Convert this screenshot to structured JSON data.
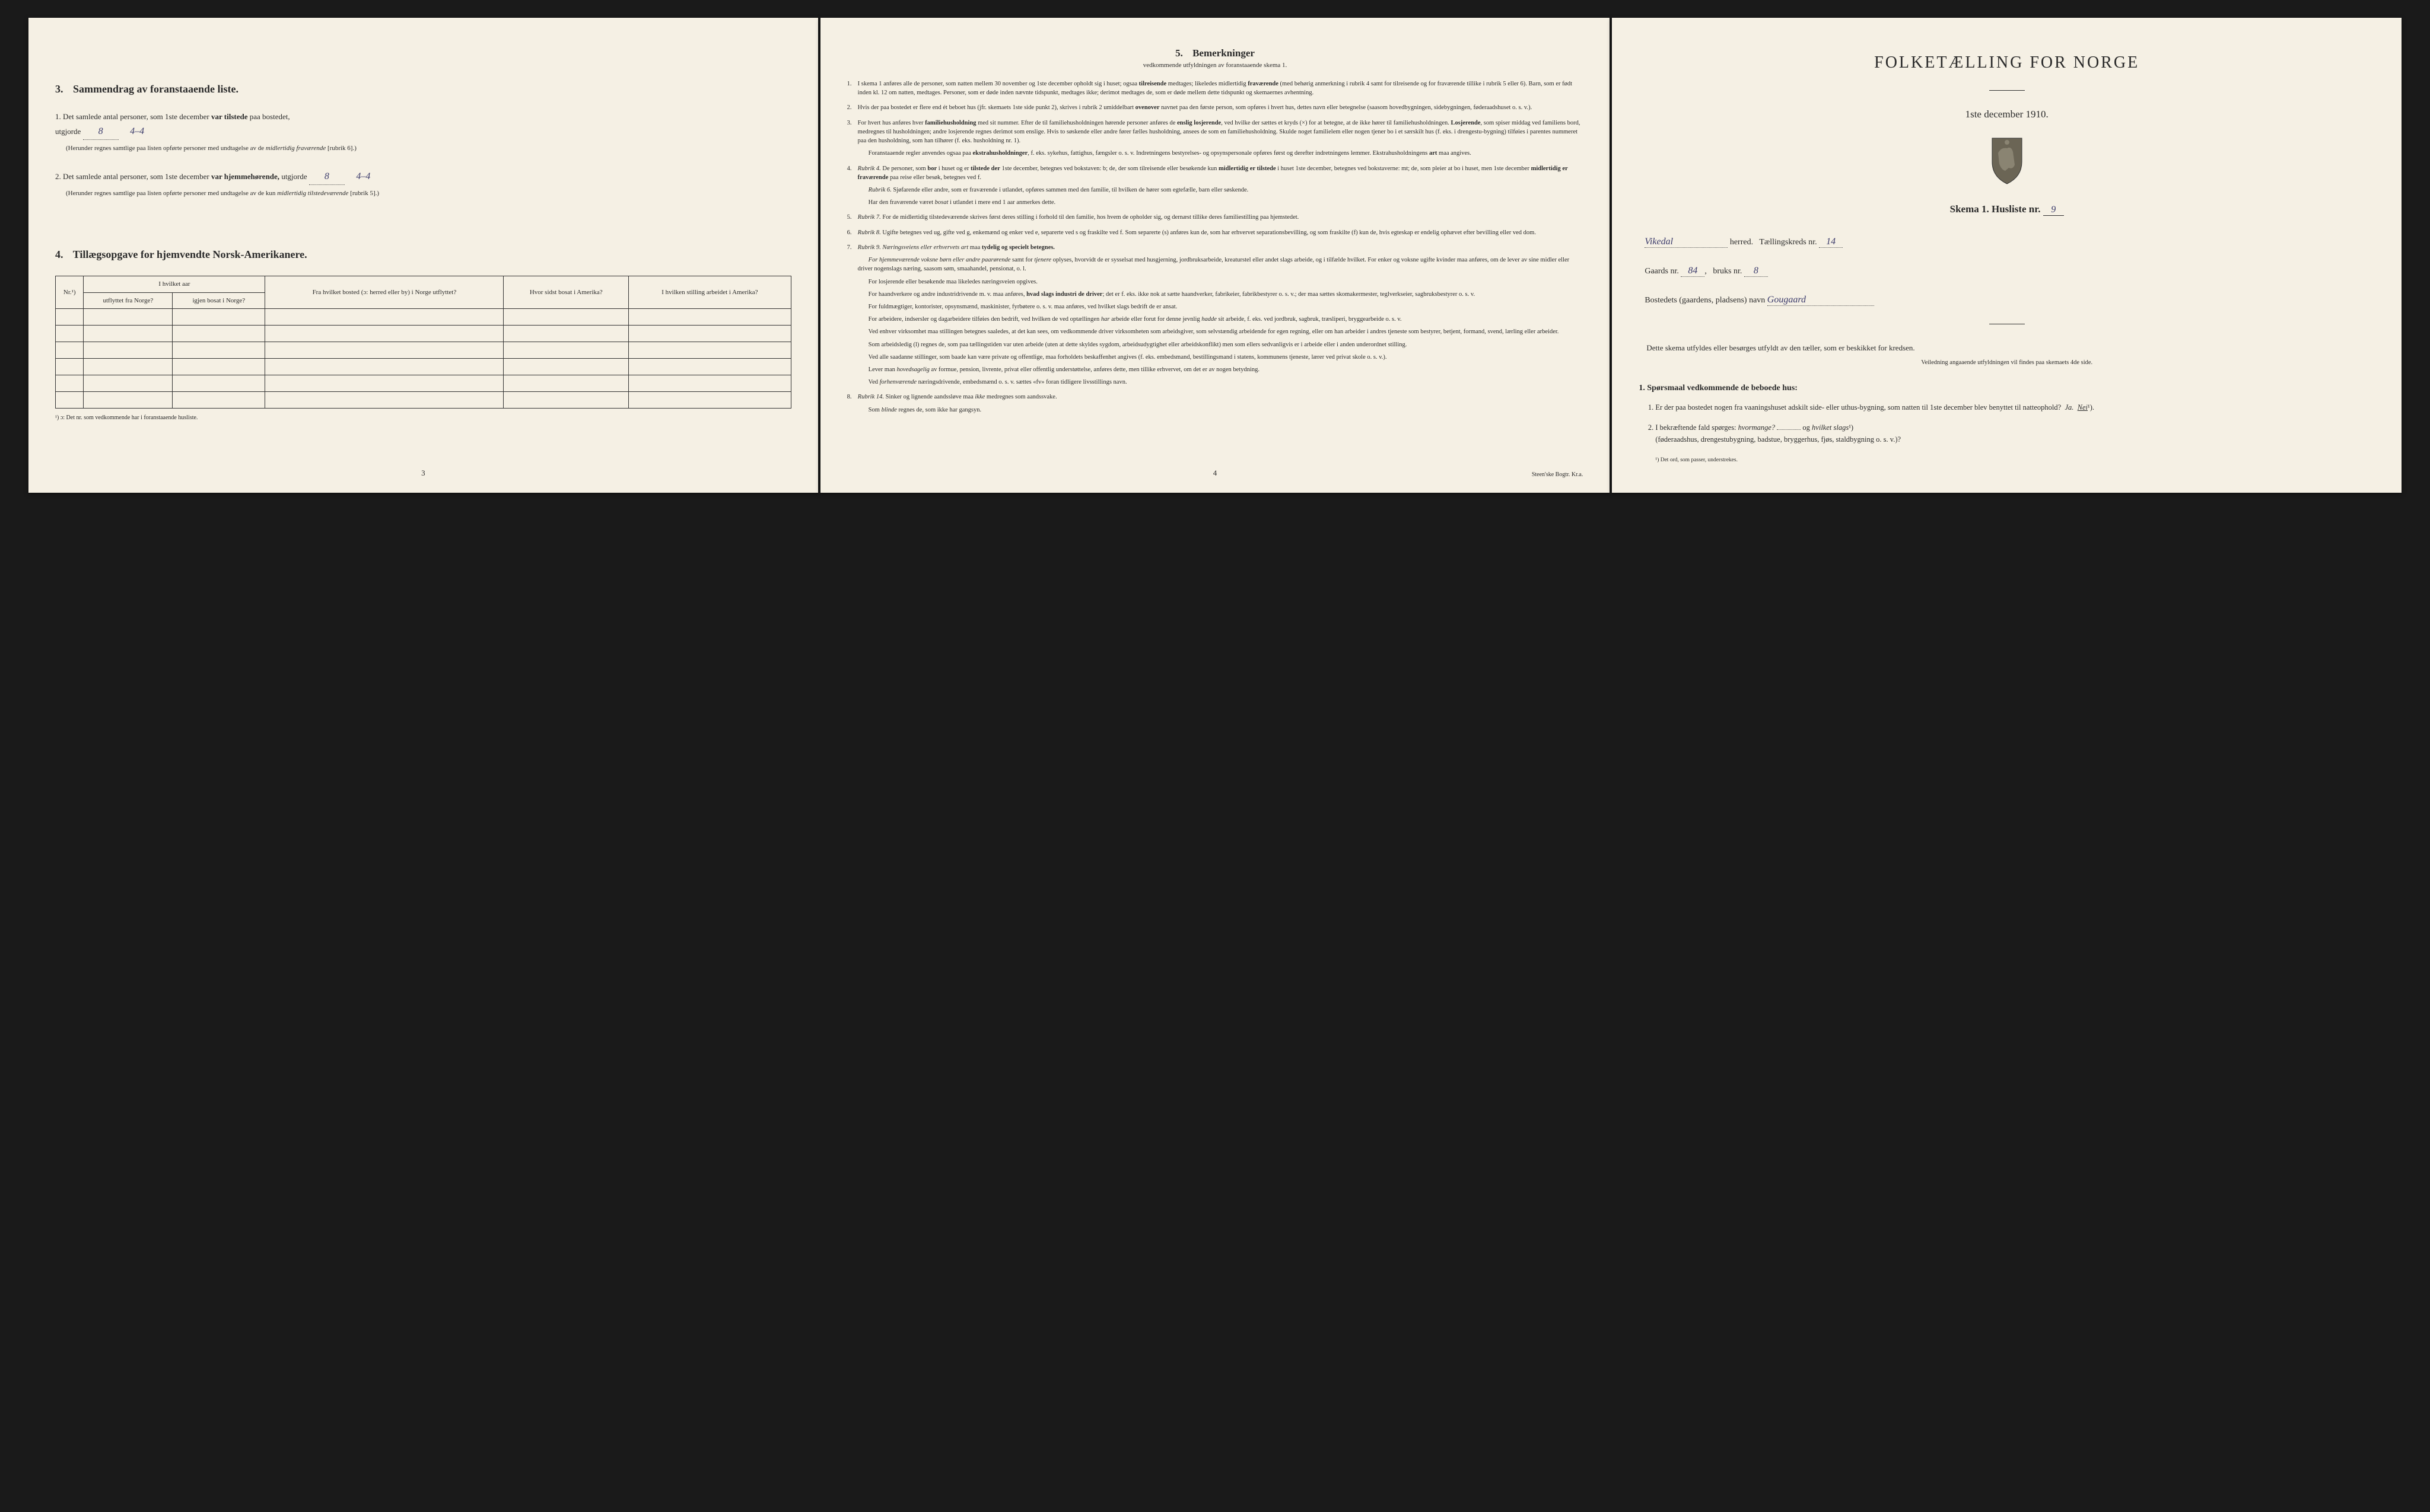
{
  "page1": {
    "section3": {
      "heading_num": "3.",
      "heading_text": "Sammendrag av foranstaaende liste.",
      "item1": {
        "num": "1.",
        "text_a": "Det samlede antal personer, som 1ste december",
        "bold_a": "var tilstede",
        "text_b": "paa bostedet,",
        "utgjorde": "utgjorde",
        "value": "8",
        "value2": "4–4",
        "paren": "(Herunder regnes samtlige paa listen opførte personer med undtagelse av de",
        "paren_italic": "midlertidig fraværende",
        "paren_end": "[rubrik 6].)"
      },
      "item2": {
        "num": "2.",
        "text_a": "Det samlede antal personer, som 1ste december",
        "bold_a": "var hjemmehørende,",
        "text_b": "utgjorde",
        "value": "8",
        "value2": "4–4",
        "paren": "(Herunder regnes samtlige paa listen opførte personer med undtagelse av de kun",
        "paren_italic": "midlertidig tilstedeværende",
        "paren_end": "[rubrik 5].)"
      }
    },
    "section4": {
      "heading_num": "4.",
      "heading_text": "Tillægsopgave for hjemvendte Norsk-Amerikanere.",
      "cols": {
        "nr": "Nr.¹)",
        "col_group": "I hvilket aar",
        "c1": "utflyttet fra Norge?",
        "c2": "igjen bosat i Norge?",
        "c3": "Fra hvilket bosted (ɔ: herred eller by) i Norge utflyttet?",
        "c4": "Hvor sidst bosat i Amerika?",
        "c5": "I hvilken stilling arbeidet i Amerika?"
      },
      "footnote": "¹) ɔ: Det nr. som vedkommende har i foranstaaende husliste."
    },
    "page_num": "3"
  },
  "page2": {
    "heading_num": "5.",
    "heading_text": "Bemerkninger",
    "subheading": "vedkommende utfyldningen av foranstaaende skema 1.",
    "items": [
      {
        "num": "1.",
        "html": "I skema 1 anføres alle de personer, som natten mellem 30 november og 1ste december opholdt sig i huset; ogsaa <b>tilreisende</b> medtages; likeledes midlertidig <b>fraværende</b> (med behørig anmerkning i rubrik 4 samt for tilreisende og for fraværende tillike i rubrik 5 eller 6). Barn, som er født inden kl. 12 om natten, medtages. Personer, som er døde inden nævnte tidspunkt, medtages ikke; derimot medtages de, som er døde mellem dette tidspunkt og skemaernes avhentning."
      },
      {
        "num": "2.",
        "html": "Hvis der paa bostedet er flere end ét beboet hus (jfr. skemaets 1ste side punkt 2), skrives i rubrik 2 umiddelbart <b>ovenover</b> navnet paa den første person, som opføres i hvert hus, dettes navn eller betegnelse (saasom hovedbygningen, sidebygningen, føderaadshuset o. s. v.)."
      },
      {
        "num": "3.",
        "html": "For hvert hus anføres hver <b>familiehusholdning</b> med sit nummer. Efter de til familiehusholdningen hørende personer anføres de <b>enslig losjerende</b>, ved hvilke der sættes et kryds (×) for at betegne, at de ikke hører til familiehusholdningen. <b>Losjerende</b>, som spiser middag ved familiens bord, medregnes til husholdningen; andre losjerende regnes derimot som enslige. Hvis to søskende eller andre fører fælles husholdning, ansees de som en familiehusholdning. Skulde noget familielem eller nogen tjener bo i et særskilt hus (f. eks. i drengestu-bygning) tilføies i parentes nummeret paa den husholdning, som han tilhører (f. eks. husholdning nr. 1).",
        "sub": "Foranstaaende regler anvendes ogsaa paa <b>ekstrahusholdninger</b>, f. eks. sykehus, fattighus, fængsler o. s. v. Indretningens bestyrelses- og opsynspersonale opføres først og derefter indretningens lemmer. Ekstrahusholdningens <b>art</b> maa angives."
      },
      {
        "num": "4.",
        "html": "<em>Rubrik 4.</em> De personer, som <b>bor</b> i huset og er <b>tilstede der</b> 1ste december, betegnes ved bokstaven: b; de, der som tilreisende eller besøkende kun <b>midlertidig er tilstede</b> i huset 1ste december, betegnes ved bokstaverne: mt; de, som pleier at bo i huset, men 1ste december <b>midlertidig er fraværende</b> paa reise eller besøk, betegnes ved f.",
        "sub": "<em>Rubrik 6.</em> Sjøfarende eller andre, som er fraværende i utlandet, opføres sammen med den familie, til hvilken de hører som egtefælle, barn eller søskende.",
        "sub2": "Har den fraværende været <em>bosat</em> i utlandet i mere end 1 aar anmerkes dette."
      },
      {
        "num": "5.",
        "html": "<em>Rubrik 7.</em> For de midlertidig tilstedeværende skrives først deres stilling i forhold til den familie, hos hvem de opholder sig, og dernæst tillike deres familiestilling paa hjemstedet."
      },
      {
        "num": "6.",
        "html": "<em>Rubrik 8.</em> Ugifte betegnes ved ug, gifte ved g, enkemænd og enker ved e, separerte ved s og fraskilte ved f. Som separerte (s) anføres kun de, som har erhvervet separationsbevilling, og som fraskilte (f) kun de, hvis egteskap er endelig ophævet efter bevilling eller ved dom."
      },
      {
        "num": "7.",
        "html": "<em>Rubrik 9. Næringsveiens eller erhvervets art</em> maa <b>tydelig og specielt betegnes.</b>",
        "sub": "<em>For hjemmeværende voksne børn eller andre paarørende</em> samt for <em>tjenere</em> oplyses, hvorvidt de er sysselsat med husgjerning, jordbruksarbeide, kreaturstel eller andet slags arbeide, og i tilfælde hvilket. For enker og voksne ugifte kvinder maa anføres, om de lever av sine midler eller driver nogenslags næring, saasom søm, smaahandel, pensionat, o. l.",
        "paras": [
          "For losjerende eller besøkende maa likeledes næringsveien opgives.",
          "For haandverkere og andre industridrivende m. v. maa anføres, <b>hvad slags industri de driver</b>; det er f. eks. ikke nok at sætte haandverker, fabrikeier, fabrikbestyrer o. s. v.; der maa sættes skomakermester, teglverkseier, sagbruksbestyrer o. s. v.",
          "For fuldmægtiger, kontorister, opsynsmænd, maskinister, fyrbøtere o. s. v. maa anføres, ved hvilket slags bedrift de er ansat.",
          "For arbeidere, indsersler og dagarbeidere tilføies den bedrift, ved hvilken de ved optællingen <em>har</em> arbeide eller forut for denne jevnlig <em>hadde</em> sit arbeide, f. eks. ved jordbruk, sagbruk, træsliperi, bryggearbeide o. s. v.",
          "Ved enhver virksomhet maa stillingen betegnes saaledes, at det kan sees, om vedkommende driver virksomheten som arbeidsgiver, som selvstændig arbeidende for egen regning, eller om han arbeider i andres tjeneste som bestyrer, betjent, formand, svend, lærling eller arbeider.",
          "Som arbeidsledig (l) regnes de, som paa tællingstiden var uten arbeide (uten at dette skyldes sygdom, arbeidsudygtighet eller arbeidskonflikt) men som ellers sedvanligvis er i arbeide eller i anden underordnet stilling.",
          "Ved alle saadanne stillinger, som baade kan være private og offentlige, maa forholdets beskaffenhet angives (f. eks. embedsmand, bestillingsmand i statens, kommunens tjeneste, lærer ved privat skole o. s. v.).",
          "Lever man <em>hovedsagelig</em> av formue, pension, livrente, privat eller offentlig understøttelse, anføres dette, men tillike erhvervet, om det er av nogen betydning.",
          "Ved <em>forhenværende</em> næringsdrivende, embedsmænd o. s. v. sættes «fv» foran tidligere livsstillings navn."
        ]
      },
      {
        "num": "8.",
        "html": "<em>Rubrik 14.</em> Sinker og lignende aandssløve maa <em>ikke</em> medregnes som aandssvake.",
        "sub": "Som <em>blinde</em> regnes de, som ikke har gangsyn."
      }
    ],
    "page_num": "4",
    "printer": "Steen'ske Bogtr. Kr.a."
  },
  "page3": {
    "title": "FOLKETÆLLING FOR NORGE",
    "date": "1ste december 1910.",
    "skema_label": "Skema 1.  Husliste nr.",
    "skema_value": "9",
    "herred_value": "Vikedal",
    "herred_label": "herred.",
    "taelling_label": "Tællingskreds nr.",
    "taelling_value": "14",
    "gaard_label": "Gaards nr.",
    "gaard_value": "84",
    "bruk_label": "bruks nr.",
    "bruk_value": "8",
    "bosted_label": "Bostedets (gaardens, pladsens) navn",
    "bosted_value": "Gougaard",
    "instruction": "Dette skema utfyldes eller besørges utfyldt av den tæller, som er beskikket for kredsen.",
    "instruction_sub": "Veiledning angaaende utfyldningen vil findes paa skemaets 4de side.",
    "q_heading": "1. Spørsmaal vedkommende de beboede hus:",
    "q1": {
      "num": "1.",
      "text": "Er der paa bostedet nogen fra vaaningshuset adskilt side- eller uthus-bygning, som natten til 1ste december blev benyttet til natteophold?",
      "ja": "Ja.",
      "nei": "Nei",
      "sup": "¹)."
    },
    "q2": {
      "num": "2.",
      "text_a": "I bekræftende fald spørges:",
      "italic_a": "hvormange?",
      "text_b": "og",
      "italic_b": "hvilket slags",
      "sup": "¹)",
      "text_c": "(føderaadshus, drengestubygning, badstue, bryggerhus, fjøs, staldbygning o. s. v.)?"
    },
    "footnote": "¹) Det ord, som passer, understrekes."
  },
  "colors": {
    "paper": "#f5f0e4",
    "ink": "#2a2a2a",
    "handwriting": "#3a3a6a",
    "background": "#1a1a1a"
  }
}
